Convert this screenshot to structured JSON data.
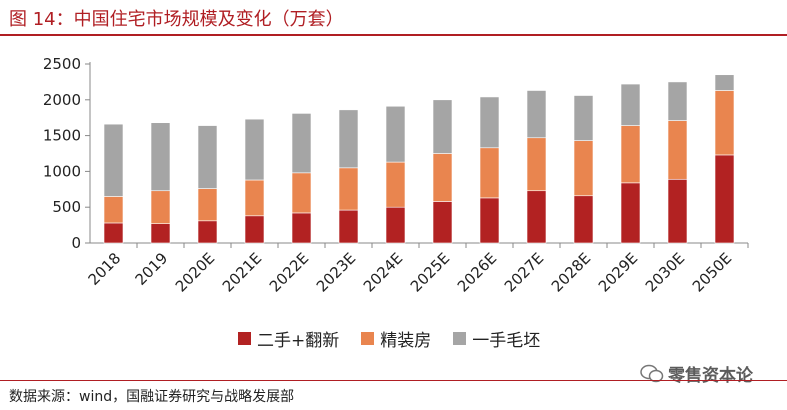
{
  "figure": {
    "title": "图 14：中国住宅市场规模及变化（万套）",
    "source": "数据来源：wind，国融证券研究与战略发展部",
    "watermark": "零售资本论"
  },
  "colors": {
    "accent": "#b01e23",
    "series_secondhand": "#b22222",
    "series_decorated": "#e9854f",
    "series_rough": "#a5a5a5"
  },
  "chart_data": {
    "type": "bar",
    "stacked": true,
    "title": "中国住宅市场规模及变化（万套）",
    "xlabel": "",
    "ylabel": "",
    "ylim": [
      0,
      2500
    ],
    "yticks": [
      0,
      500,
      1000,
      1500,
      2000,
      2500
    ],
    "grid": false,
    "legend_position": "bottom",
    "categories": [
      "2018",
      "2019",
      "2020E",
      "2021E",
      "2022E",
      "2023E",
      "2024E",
      "2025E",
      "2026E",
      "2027E",
      "2028E",
      "2029E",
      "2030E",
      "2050E"
    ],
    "series": [
      {
        "name": "二手+翻新",
        "values": [
          280,
          270,
          310,
          380,
          420,
          460,
          500,
          580,
          630,
          730,
          660,
          840,
          890,
          1230
        ]
      },
      {
        "name": "精装房",
        "values": [
          370,
          460,
          450,
          500,
          560,
          590,
          630,
          670,
          700,
          740,
          770,
          800,
          820,
          900
        ]
      },
      {
        "name": "一手毛坯",
        "values": [
          1010,
          950,
          880,
          850,
          830,
          810,
          780,
          750,
          710,
          660,
          630,
          580,
          540,
          220
        ]
      }
    ]
  }
}
